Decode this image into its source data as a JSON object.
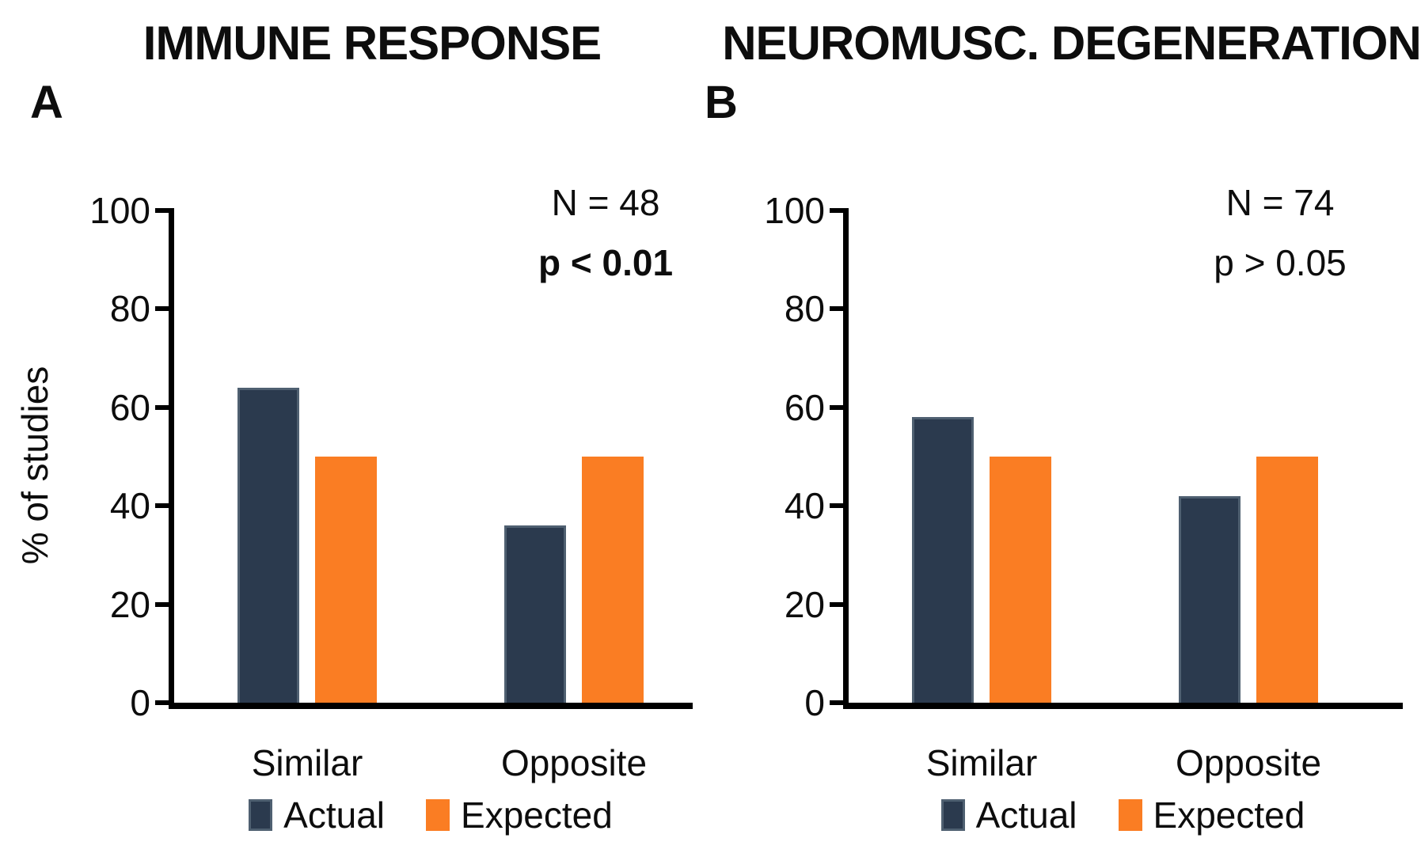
{
  "figure": {
    "background": "#ffffff"
  },
  "colors": {
    "actual": "#2b3a4e",
    "actual_border": "#4f6071",
    "expected": "#fa7d23",
    "axis": "#000000",
    "text": "#0d0d0d"
  },
  "chart_data": [
    {
      "type": "bar",
      "panel_label": "A",
      "title": "IMMUNE RESPONSE",
      "categories": [
        "Similar",
        "Opposite"
      ],
      "series": [
        {
          "name": "Actual",
          "values": [
            64,
            36
          ]
        },
        {
          "name": "Expected",
          "values": [
            50,
            50
          ]
        }
      ],
      "annotations": [
        {
          "text": "N = 48",
          "bold": false
        },
        {
          "text": "p < 0.01",
          "bold": true
        }
      ],
      "xlabel": "",
      "ylabel": "% of studies",
      "ylim": [
        0,
        100
      ],
      "yticks": [
        0,
        20,
        40,
        60,
        80,
        100
      ],
      "grid": false,
      "legend_position": "bottom"
    },
    {
      "type": "bar",
      "panel_label": "B",
      "title": "NEUROMUSC. DEGENERATION",
      "categories": [
        "Similar",
        "Opposite"
      ],
      "series": [
        {
          "name": "Actual",
          "values": [
            58,
            42
          ]
        },
        {
          "name": "Expected",
          "values": [
            50,
            50
          ]
        }
      ],
      "annotations": [
        {
          "text": "N = 74",
          "bold": false
        },
        {
          "text": "p > 0.05",
          "bold": false
        }
      ],
      "xlabel": "",
      "ylabel": "",
      "ylim": [
        0,
        100
      ],
      "yticks": [
        0,
        20,
        40,
        60,
        80,
        100
      ],
      "grid": false,
      "legend_position": "bottom"
    }
  ]
}
